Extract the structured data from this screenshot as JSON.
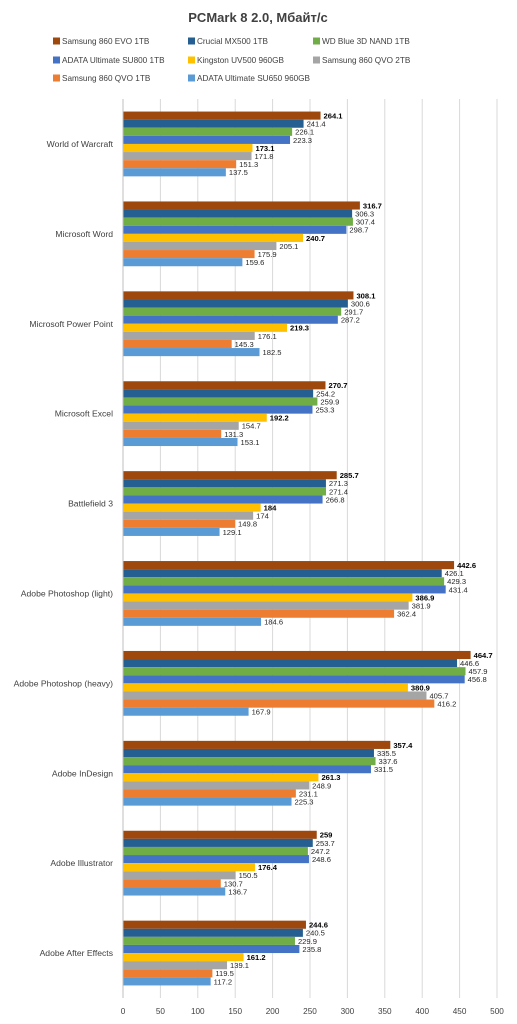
{
  "chart_data": {
    "type": "bar",
    "orientation": "horizontal",
    "title": "PCMark 8 2.0, Мбайт/с",
    "xlabel": "",
    "ylabel": "",
    "xlim": [
      0,
      500
    ],
    "xticks": [
      0,
      50,
      100,
      150,
      200,
      250,
      300,
      350,
      400,
      450,
      500
    ],
    "grid": true,
    "legend_position": "top",
    "categories": [
      "World of Warcraft",
      "Microsoft Word",
      "Microsoft Power Point",
      "Microsoft Excel",
      "Battlefield 3",
      "Adobe Photoshop (light)",
      "Adobe Photoshop (heavy)",
      "Adobe InDesign",
      "Adobe Illustrator",
      "Adobe After Effects"
    ],
    "series": [
      {
        "name": "Samsung 860 EVO 1TB",
        "color": "#9e480e",
        "values": [
          264.1,
          316.7,
          308.1,
          270.7,
          285.7,
          442.6,
          464.7,
          357.4,
          259,
          244.6
        ]
      },
      {
        "name": "Crucial MX500 1TB",
        "color": "#255e91",
        "values": [
          241.4,
          306.3,
          300.6,
          254.2,
          271.3,
          426.1,
          446.6,
          335.5,
          253.7,
          240.5
        ]
      },
      {
        "name": "WD Blue 3D NAND 1TB",
        "color": "#70ad47",
        "values": [
          226.1,
          307.4,
          291.7,
          259.9,
          271.4,
          429.3,
          457.9,
          337.6,
          247.2,
          229.9
        ]
      },
      {
        "name": "ADATA Ultimate SU800 1TB",
        "color": "#4472c4",
        "values": [
          223.3,
          298.7,
          287.2,
          253.3,
          266.8,
          431.4,
          456.8,
          331.5,
          248.6,
          235.8
        ]
      },
      {
        "name": "Kingston UV500 960GB",
        "color": "#ffc000",
        "values": [
          173.1,
          240.7,
          219.3,
          192.2,
          184,
          386.9,
          380.9,
          261.3,
          176.4,
          161.2
        ]
      },
      {
        "name": "Samsung 860 QVO 2TB",
        "color": "#a5a5a5",
        "values": [
          171.8,
          205.1,
          176.1,
          154.7,
          174,
          381.9,
          405.7,
          248.9,
          150.5,
          139.1
        ]
      },
      {
        "name": "Samsung 860 QVO 1TB",
        "color": "#ed7d31",
        "values": [
          151.3,
          175.9,
          145.3,
          131.3,
          149.8,
          362.4,
          416.2,
          231.1,
          130.7,
          119.5
        ]
      },
      {
        "name": "ADATA Ultimate SU650 960GB",
        "color": "#5b9bd5",
        "values": [
          137.5,
          159.6,
          182.5,
          153.1,
          129.1,
          184.6,
          167.9,
          225.3,
          136.7,
          117.2
        ]
      }
    ],
    "bold_label_series": [
      "Samsung 860 EVO 1TB",
      "Kingston UV500 960GB"
    ]
  }
}
